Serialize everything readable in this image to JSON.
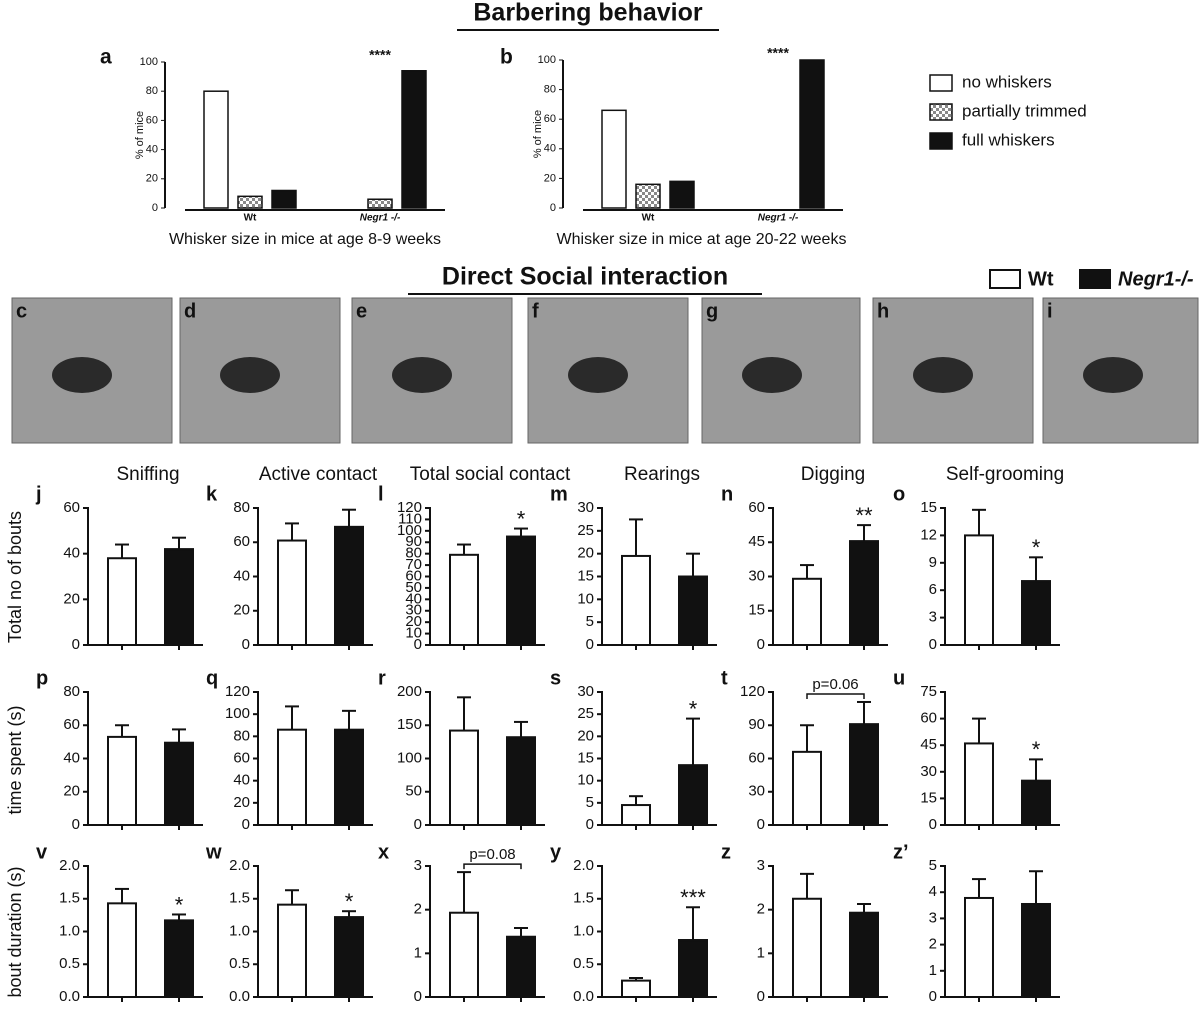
{
  "headings": {
    "barbering": "Barbering behavior",
    "social": "Direct Social interaction"
  },
  "row_labels": [
    "Total no of bouts",
    "time spent (s)",
    "bout duration (s)"
  ],
  "legend": [
    {
      "name": "Wt",
      "color": "#ffffff"
    },
    {
      "name": "Negr1-/-",
      "color": "#111111"
    }
  ],
  "photos": [
    "c",
    "d",
    "e",
    "f",
    "g",
    "h",
    "i"
  ],
  "chart_data": [
    {
      "type": "grouped-bar",
      "label": "a",
      "xlabel": "Whisker size in mice at age 8-9 weeks",
      "ylabel": "% of mice",
      "categories": [
        "Wt",
        "Negr1 -/-"
      ],
      "annotation": "****",
      "annotation_category": 1,
      "series": [
        {
          "name": "no whiskers",
          "color": "#ffffff",
          "values": [
            80,
            0
          ]
        },
        {
          "name": "partially trimmed",
          "color": "#c8c8c8",
          "values": [
            8,
            6
          ]
        },
        {
          "name": "full whiskers",
          "color": "#111111",
          "values": [
            12,
            94
          ]
        }
      ],
      "ylim": [
        0,
        100
      ],
      "yticks": [
        0,
        20,
        40,
        60,
        80,
        100
      ]
    },
    {
      "type": "grouped-bar",
      "label": "b",
      "xlabel": "Whisker size in mice at age 20-22 weeks",
      "ylabel": "% of mice",
      "categories": [
        "Wt",
        "Negr1 -/-"
      ],
      "annotation": "****",
      "annotation_category": 1,
      "series": [
        {
          "color": "#ffffff",
          "values": [
            66,
            0
          ]
        },
        {
          "color": "#c8c8c8",
          "values": [
            16,
            0
          ]
        },
        {
          "color": "#111111",
          "values": [
            18,
            100
          ]
        }
      ],
      "ylim": [
        0,
        100
      ],
      "yticks": [
        0,
        20,
        40,
        60,
        80,
        100
      ]
    },
    {
      "type": "bar",
      "label": "j",
      "title": "Sniffing",
      "values": [
        38,
        42
      ],
      "errors": [
        6,
        5
      ],
      "colors": [
        "#ffffff",
        "#111111"
      ],
      "ylim": [
        0,
        60
      ],
      "yticks": [
        0,
        20,
        40,
        60
      ]
    },
    {
      "type": "bar",
      "label": "k",
      "title": "Active contact",
      "values": [
        61,
        69
      ],
      "errors": [
        10,
        10
      ],
      "colors": [
        "#ffffff",
        "#111111"
      ],
      "ylim": [
        0,
        80
      ],
      "yticks": [
        0,
        20,
        40,
        60,
        80
      ]
    },
    {
      "type": "bar",
      "label": "l",
      "title": "Total social contact",
      "values": [
        79,
        95
      ],
      "errors": [
        9,
        7
      ],
      "annotation": "*",
      "colors": [
        "#ffffff",
        "#111111"
      ],
      "ylim": [
        0,
        120
      ],
      "yticks": [
        0,
        10,
        20,
        30,
        40,
        50,
        60,
        70,
        80,
        90,
        100,
        110,
        120
      ]
    },
    {
      "type": "bar",
      "label": "m",
      "title": "Rearings",
      "values": [
        19.5,
        15
      ],
      "errors": [
        8,
        5
      ],
      "colors": [
        "#ffffff",
        "#111111"
      ],
      "ylim": [
        0,
        30
      ],
      "yticks": [
        0,
        5,
        10,
        15,
        20,
        25,
        30
      ]
    },
    {
      "type": "bar",
      "label": "n",
      "title": "Digging",
      "values": [
        29,
        45.5
      ],
      "errors": [
        6,
        7
      ],
      "annotation": "**",
      "colors": [
        "#ffffff",
        "#111111"
      ],
      "ylim": [
        0,
        60
      ],
      "yticks": [
        0,
        15,
        30,
        45,
        60
      ]
    },
    {
      "type": "bar",
      "label": "o",
      "title": "Self-grooming",
      "values": [
        12,
        7
      ],
      "errors": [
        2.8,
        2.6
      ],
      "annotation": "*",
      "colors": [
        "#ffffff",
        "#111111"
      ],
      "ylim": [
        0,
        15
      ],
      "yticks": [
        0,
        3,
        6,
        9,
        12,
        15
      ]
    },
    {
      "type": "bar",
      "label": "p",
      "values": [
        53,
        49.5
      ],
      "errors": [
        7,
        8
      ],
      "colors": [
        "#ffffff",
        "#111111"
      ],
      "ylim": [
        0,
        80
      ],
      "yticks": [
        0,
        20,
        40,
        60,
        80
      ]
    },
    {
      "type": "bar",
      "label": "q",
      "values": [
        86,
        86
      ],
      "errors": [
        21,
        17
      ],
      "colors": [
        "#ffffff",
        "#111111"
      ],
      "ylim": [
        0,
        120
      ],
      "yticks": [
        0,
        20,
        40,
        60,
        80,
        100,
        120
      ]
    },
    {
      "type": "bar",
      "label": "r",
      "values": [
        142,
        132
      ],
      "errors": [
        50,
        23
      ],
      "colors": [
        "#ffffff",
        "#111111"
      ],
      "ylim": [
        0,
        200
      ],
      "yticks": [
        0,
        50,
        100,
        150,
        200
      ]
    },
    {
      "type": "bar",
      "label": "s",
      "values": [
        4.5,
        13.5
      ],
      "errors": [
        2,
        10.5
      ],
      "annotation": "*",
      "colors": [
        "#ffffff",
        "#111111"
      ],
      "ylim": [
        0,
        30
      ],
      "yticks": [
        0,
        5,
        10,
        15,
        20,
        25,
        30
      ]
    },
    {
      "type": "bar",
      "label": "t",
      "values": [
        66,
        91
      ],
      "errors": [
        24,
        20
      ],
      "bracket": "p=0.06",
      "colors": [
        "#ffffff",
        "#111111"
      ],
      "ylim": [
        0,
        120
      ],
      "yticks": [
        0,
        30,
        60,
        90,
        120
      ]
    },
    {
      "type": "bar",
      "label": "u",
      "values": [
        46,
        25
      ],
      "errors": [
        14,
        12
      ],
      "annotation": "*",
      "colors": [
        "#ffffff",
        "#111111"
      ],
      "ylim": [
        0,
        75
      ],
      "yticks": [
        0,
        15,
        30,
        45,
        60,
        75
      ]
    },
    {
      "type": "bar",
      "label": "v",
      "values": [
        1.43,
        1.17
      ],
      "errors": [
        0.22,
        0.09
      ],
      "annotation": "*",
      "colors": [
        "#ffffff",
        "#111111"
      ],
      "ylim": [
        0,
        2
      ],
      "yticks": [
        {
          "value": 0,
          "label": "0.0"
        },
        0.5,
        {
          "value": 1,
          "label": "1.0"
        },
        1.5,
        {
          "value": 2,
          "label": "2.0"
        }
      ]
    },
    {
      "type": "bar",
      "label": "w",
      "values": [
        1.41,
        1.22
      ],
      "errors": [
        0.22,
        0.09
      ],
      "annotation": "*",
      "colors": [
        "#ffffff",
        "#111111"
      ],
      "ylim": [
        0,
        2
      ],
      "yticks": [
        {
          "value": 0,
          "label": "0.0"
        },
        0.5,
        {
          "value": 1,
          "label": "1.0"
        },
        1.5,
        {
          "value": 2,
          "label": "2.0"
        }
      ]
    },
    {
      "type": "bar",
      "label": "x",
      "values": [
        1.93,
        1.38
      ],
      "errors": [
        0.93,
        0.2
      ],
      "bracket": "p=0.08",
      "colors": [
        "#ffffff",
        "#111111"
      ],
      "ylim": [
        0,
        3
      ],
      "yticks": [
        0,
        1,
        2,
        3
      ]
    },
    {
      "type": "bar",
      "label": "y",
      "values": [
        0.25,
        0.87
      ],
      "errors": [
        0.04,
        0.5
      ],
      "annotation": "***",
      "colors": [
        "#ffffff",
        "#111111"
      ],
      "ylim": [
        0,
        2
      ],
      "yticks": [
        {
          "value": 0,
          "label": "0.0"
        },
        0.5,
        {
          "value": 1,
          "label": "1.0"
        },
        1.5,
        {
          "value": 2,
          "label": "2.0"
        }
      ]
    },
    {
      "type": "bar",
      "label": "z",
      "values": [
        2.25,
        1.93
      ],
      "errors": [
        0.57,
        0.2
      ],
      "colors": [
        "#ffffff",
        "#111111"
      ],
      "ylim": [
        0,
        3
      ],
      "yticks": [
        0,
        1,
        2,
        3
      ]
    },
    {
      "type": "bar",
      "label": "z’",
      "values": [
        3.78,
        3.55
      ],
      "errors": [
        0.72,
        1.25
      ],
      "colors": [
        "#ffffff",
        "#111111"
      ],
      "ylim": [
        0,
        5
      ],
      "yticks": [
        0,
        1,
        2,
        3,
        4,
        5
      ]
    }
  ]
}
